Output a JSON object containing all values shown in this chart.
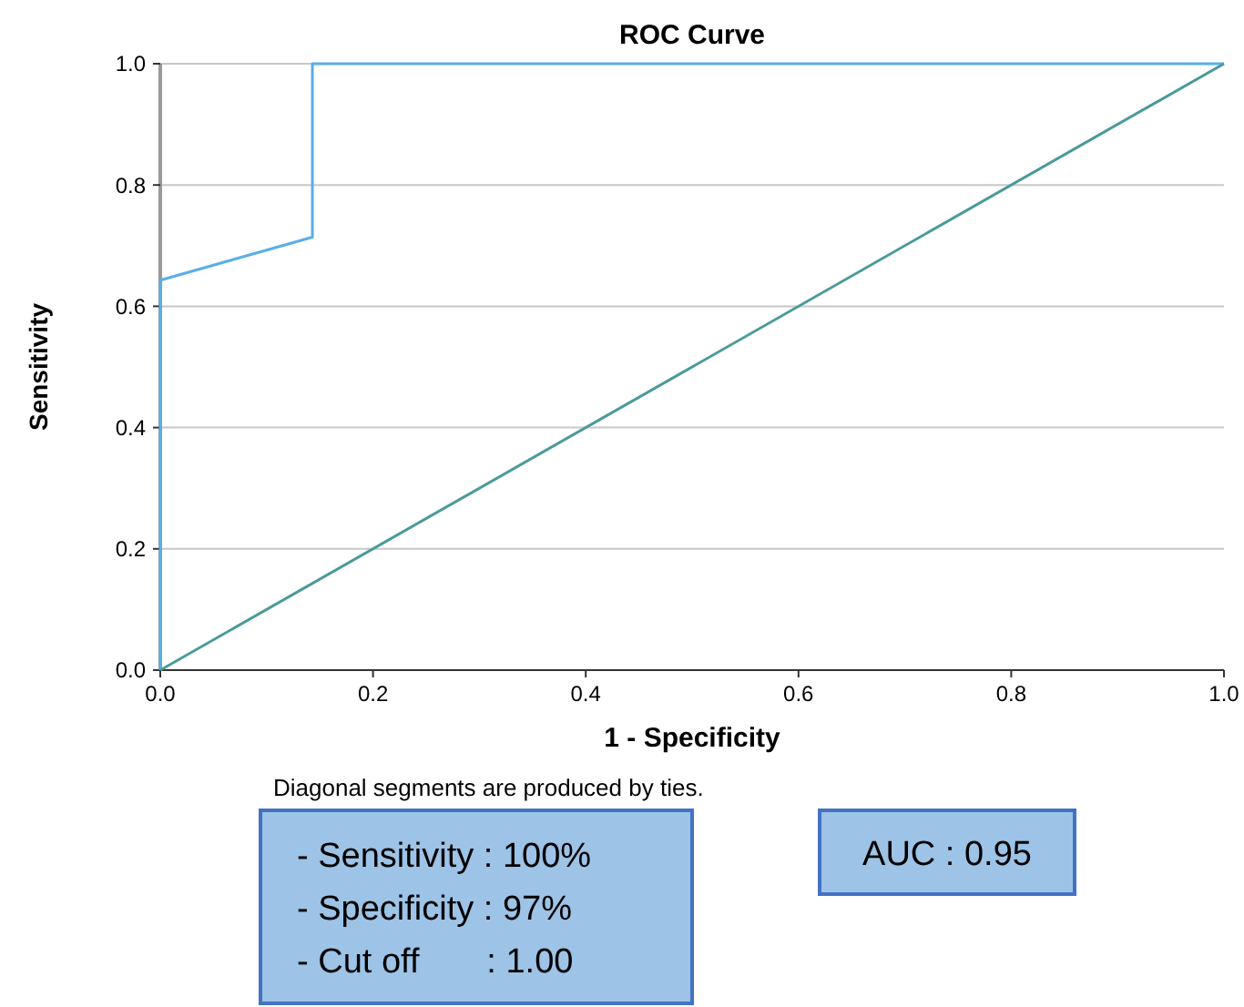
{
  "chart_data": {
    "type": "line",
    "title": "ROC Curve",
    "xlabel": "1 - Specificity",
    "ylabel": "Sensitivity",
    "xlim": [
      0,
      1
    ],
    "ylim": [
      0,
      1
    ],
    "xticks": [
      {
        "value": 0,
        "label": "0.0"
      },
      0.2,
      0.4,
      0.6,
      0.8,
      {
        "value": 1,
        "label": "1.0"
      }
    ],
    "yticks": [
      {
        "value": 0,
        "label": "0.0"
      },
      0.2,
      0.4,
      0.6,
      0.8,
      {
        "value": 1,
        "label": "1.0"
      }
    ],
    "grid": "y",
    "marker": "none",
    "line_style": "solid",
    "series": [
      {
        "color": "#5aaee8",
        "x": [
          0,
          0,
          0.143,
          0.143,
          1
        ],
        "values": [
          0,
          0.643,
          0.714,
          1,
          1
        ]
      },
      {
        "color": "#4a9a9a",
        "x": [
          0,
          1
        ],
        "values": [
          0,
          1
        ]
      }
    ],
    "annotations": [
      "Diagonal segments are produced by ties.",
      "- Sensitivity : 100%",
      "- Specificity : 97%",
      "- Cut off       : 1.00",
      "AUC : 0.95"
    ]
  }
}
